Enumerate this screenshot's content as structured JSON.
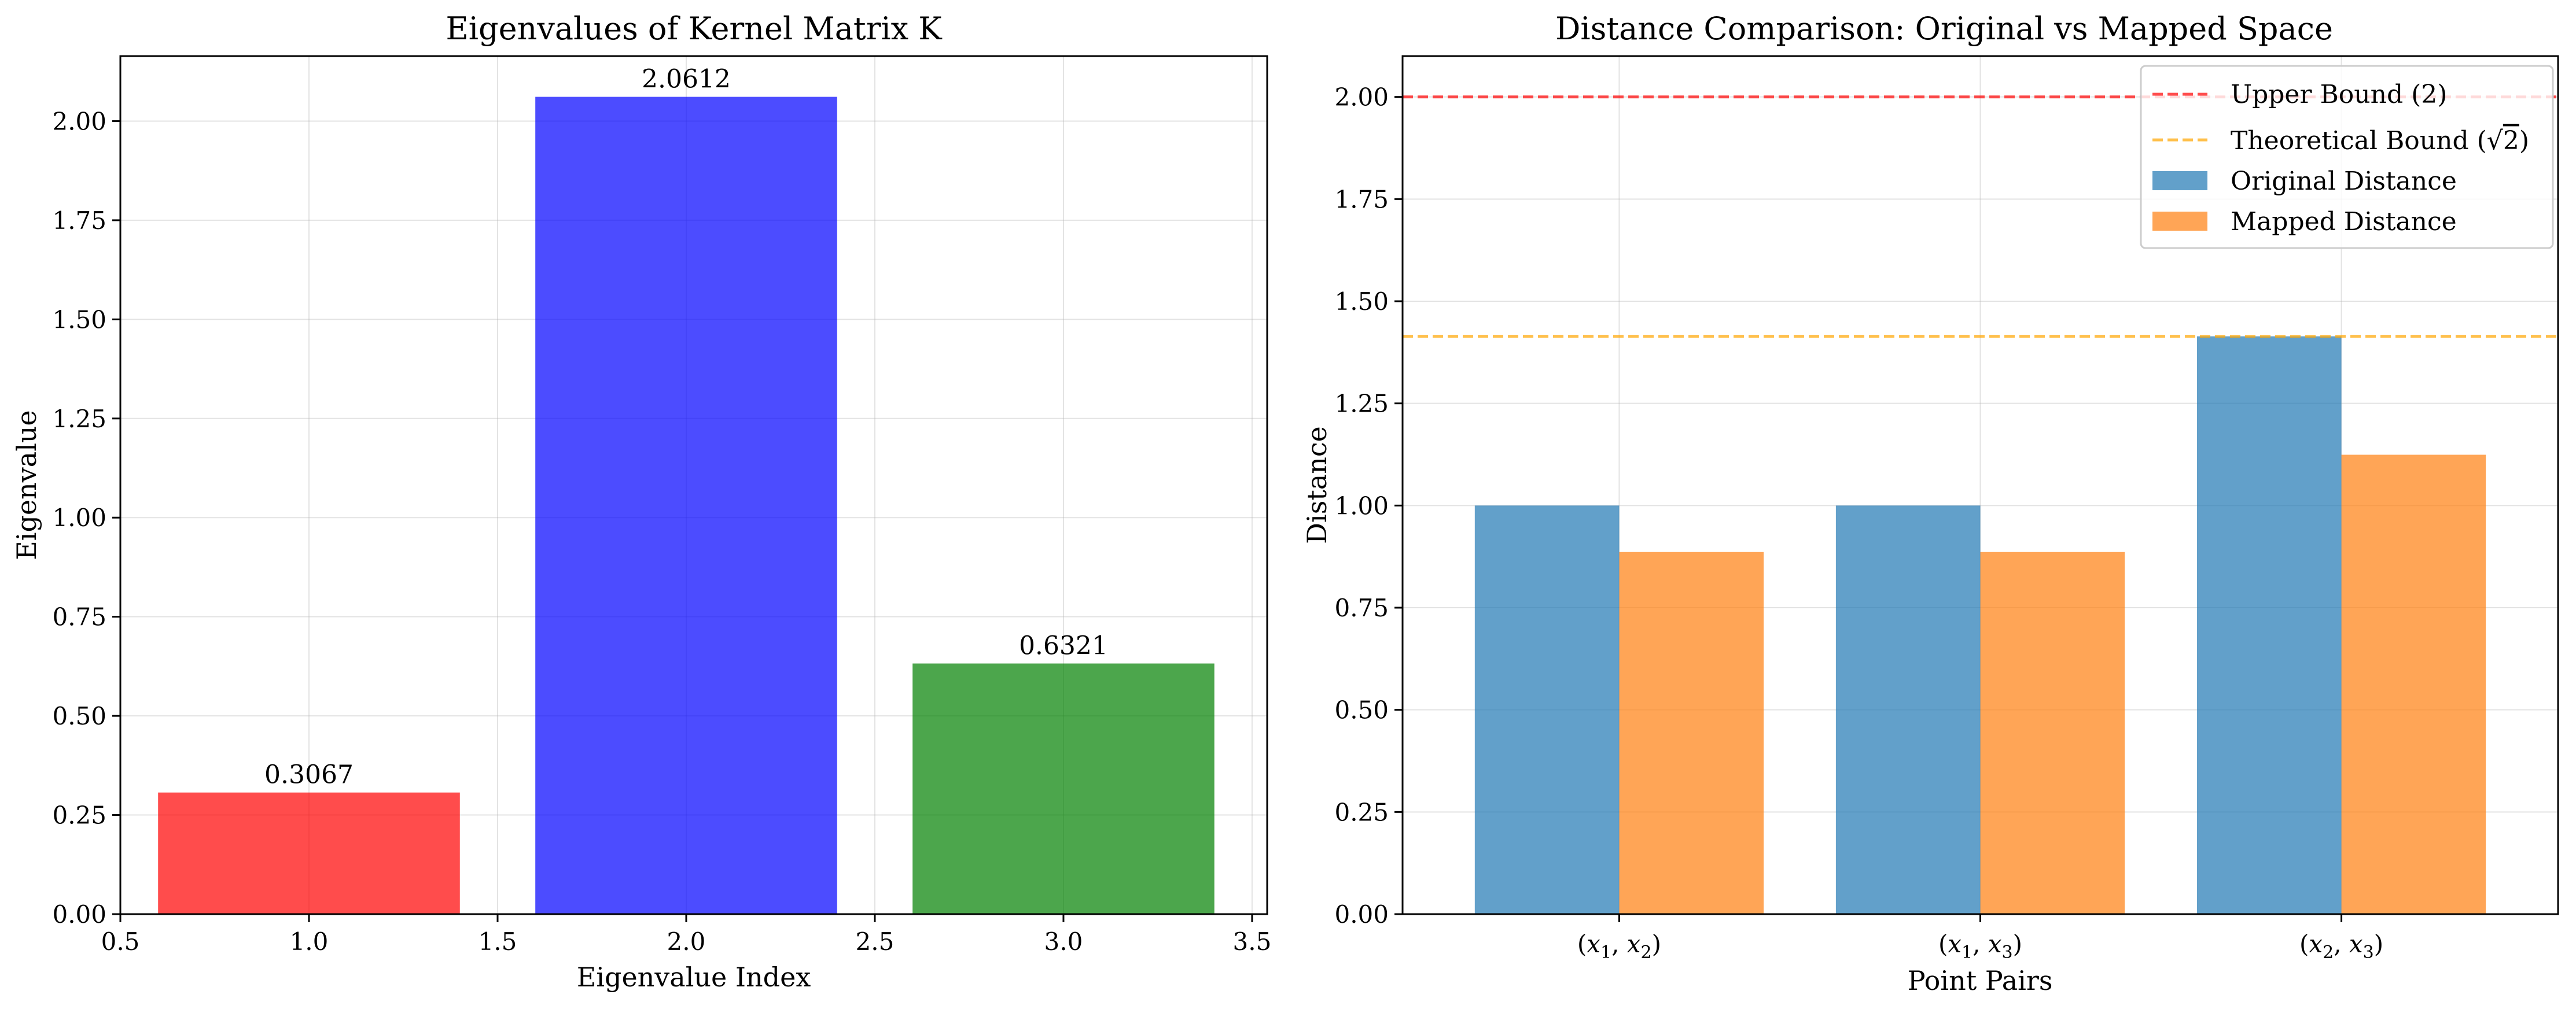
{
  "chart_data": [
    {
      "type": "bar",
      "title": "Eigenvalues of Kernel Matrix K",
      "xlabel": "Eigenvalue Index",
      "ylabel": "Eigenvalue",
      "x": [
        1.0,
        2.0,
        3.0
      ],
      "values": [
        0.3067,
        2.0612,
        0.6321
      ],
      "data_labels": [
        "0.3067",
        "2.0612",
        "0.6321"
      ],
      "bar_width": 0.8,
      "colors": [
        "#ff0000",
        "#0000ff",
        "#008000"
      ],
      "bar_alpha": 0.7,
      "xlim": [
        0.5,
        3.54
      ],
      "ylim": [
        0,
        2.164
      ],
      "xticks": [
        0.5,
        1.0,
        1.5,
        2.0,
        2.5,
        3.0,
        3.5
      ],
      "xtick_labels": [
        "0.5",
        "1.0",
        "1.5",
        "2.0",
        "2.5",
        "3.0",
        "3.5"
      ],
      "yticks": [
        0,
        0.25,
        0.5,
        0.75,
        1.0,
        1.25,
        1.5,
        1.75,
        2.0
      ],
      "ytick_labels": [
        "0.00",
        "0.25",
        "0.50",
        "0.75",
        "1.00",
        "1.25",
        "1.50",
        "1.75",
        "2.00"
      ],
      "grid": true
    },
    {
      "type": "bar",
      "title": "Distance Comparison: Original vs Mapped Space",
      "xlabel": "Point Pairs",
      "ylabel": "Distance",
      "categories": [
        "(x1, x2)",
        "(x1, x3)",
        "(x2, x3)"
      ],
      "category_labels": [
        {
          "a": "x",
          "as": "1",
          "b": "x",
          "bs": "2"
        },
        {
          "a": "x",
          "as": "1",
          "b": "x",
          "bs": "3"
        },
        {
          "a": "x",
          "as": "2",
          "b": "x",
          "bs": "3"
        }
      ],
      "series": [
        {
          "name": "Original Distance",
          "values": [
            1.0,
            1.0,
            1.4142
          ],
          "color": "#1f77b4"
        },
        {
          "name": "Mapped Distance",
          "values": [
            0.8862,
            0.8862,
            1.1243
          ],
          "color": "#ff7f0e"
        }
      ],
      "bar_alpha": 0.7,
      "reference_lines": [
        {
          "name": "Upper Bound (2)",
          "y": 2.0,
          "color": "#ff0000",
          "style": "dashed"
        },
        {
          "name": "Theoretical Bound (√2)",
          "y": 1.4142,
          "color": "#ffa500",
          "style": "dashed"
        }
      ],
      "legend": {
        "placement": "top-right",
        "entries": [
          {
            "label": "Upper Bound (2)",
            "kind": "line",
            "color": "#ff0000"
          },
          {
            "label_prefix": "Theoretical Bound (",
            "label_root": "2",
            "label_suffix": ")",
            "kind": "line",
            "color": "#ffa500"
          },
          {
            "label": "Original Distance",
            "kind": "patch",
            "color": "#1f77b4"
          },
          {
            "label": "Mapped Distance",
            "kind": "patch",
            "color": "#ff7f0e"
          }
        ]
      },
      "ylim": [
        0,
        2.1
      ],
      "yticks": [
        0,
        0.25,
        0.5,
        0.75,
        1.0,
        1.25,
        1.5,
        1.75,
        2.0
      ],
      "ytick_labels": [
        "0.00",
        "0.25",
        "0.50",
        "0.75",
        "1.00",
        "1.25",
        "1.50",
        "1.75",
        "2.00"
      ],
      "grid": true
    }
  ]
}
